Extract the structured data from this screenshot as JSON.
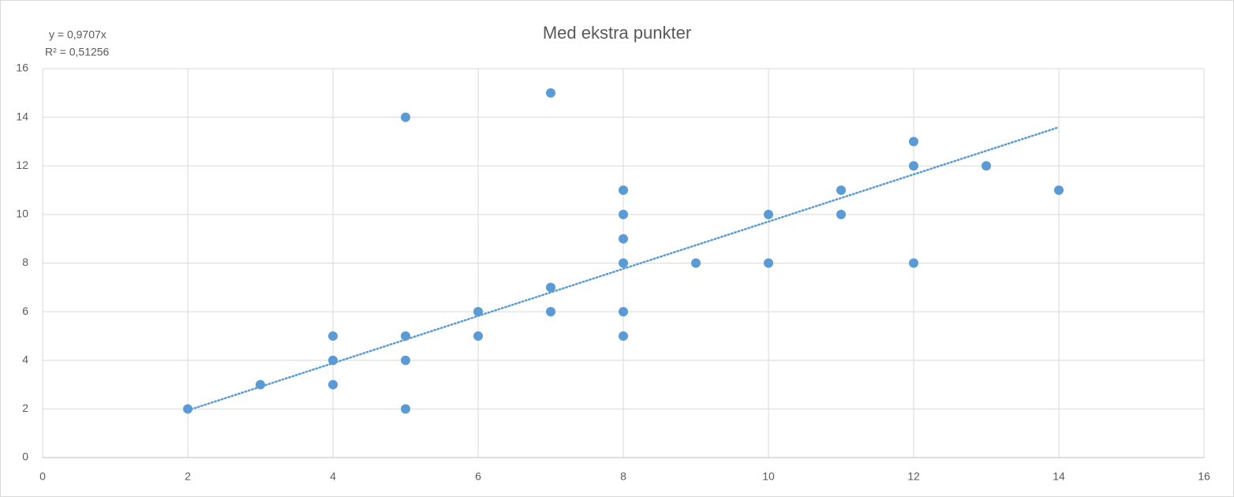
{
  "chart_data": {
    "type": "scatter",
    "title": "Med ekstra punkter",
    "x": [
      2,
      3,
      4,
      4,
      4,
      5,
      5,
      5,
      5,
      6,
      6,
      7,
      7,
      7,
      8,
      8,
      8,
      8,
      8,
      8,
      9,
      10,
      10,
      11,
      11,
      12,
      12,
      12,
      13,
      14
    ],
    "values": [
      2,
      3,
      5,
      4,
      3,
      14,
      5,
      4,
      2,
      6,
      5,
      15,
      7,
      6,
      11,
      10,
      9,
      8,
      6,
      5,
      8,
      10,
      8,
      11,
      10,
      13,
      12,
      8,
      12,
      11
    ],
    "color": "#5b9bd5",
    "xlim": [
      0,
      16
    ],
    "xticks": [
      0,
      2,
      4,
      6,
      8,
      10,
      12,
      14,
      16
    ],
    "ylim": [
      0,
      16
    ],
    "yticks": [
      0,
      2,
      4,
      6,
      8,
      10,
      12,
      14,
      16
    ],
    "grid": true,
    "trendline": {
      "slope": 0.9707,
      "equation": "y = 0,9707x",
      "r2": "R² = 0,51256"
    }
  }
}
